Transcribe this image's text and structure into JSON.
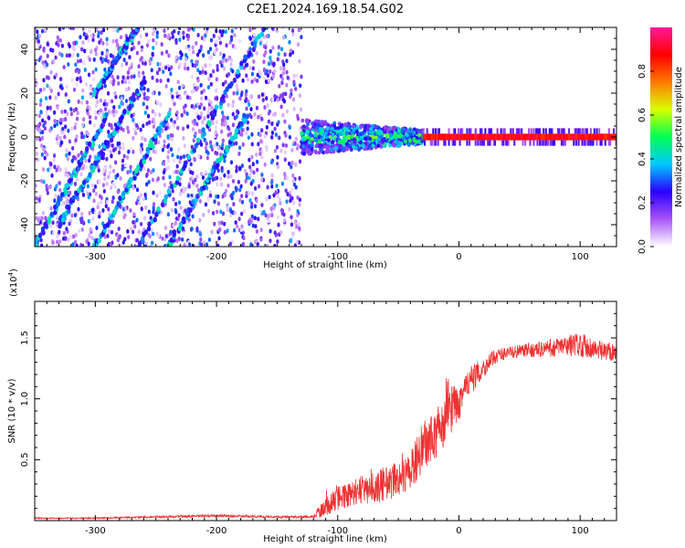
{
  "title": "C2E1.2024.169.18.54.G02",
  "chart_data": [
    {
      "type": "heatmap",
      "name": "spectrogram",
      "xlabel": "Height of straight line (km)",
      "ylabel": "Frequency (Hz)",
      "xlim": [
        -350,
        130
      ],
      "ylim": [
        -50,
        50
      ],
      "xticks": [
        "-300",
        "-200",
        "-100",
        "0",
        "100"
      ],
      "xtick_values": [
        -300,
        -200,
        -100,
        0,
        100
      ],
      "yticks": [
        "-40",
        "-20",
        "0",
        "20",
        "40"
      ],
      "ytick_values": [
        -40,
        -20,
        0,
        20,
        40
      ],
      "regions": [
        {
          "name": "noise",
          "x": [
            -350,
            -130
          ],
          "y": [
            -50,
            50
          ],
          "amplitude": 0.15
        },
        {
          "name": "transition",
          "x": [
            -130,
            -30
          ],
          "y": [
            -5,
            5
          ],
          "amplitude": 0.45
        },
        {
          "name": "carrier",
          "x": [
            -30,
            130
          ],
          "y": [
            -2,
            2
          ],
          "amplitude": 0.9
        }
      ],
      "stripes": [
        {
          "x0": -300,
          "y0": 20,
          "x1": -265,
          "y1": 50
        },
        {
          "x0": -265,
          "y0": -50,
          "x1": -160,
          "y1": 50
        },
        {
          "x0": -350,
          "y0": -50,
          "x1": -290,
          "y1": 10
        },
        {
          "x0": -330,
          "y0": -40,
          "x1": -260,
          "y1": 25
        },
        {
          "x0": -300,
          "y0": -50,
          "x1": -240,
          "y1": 10
        },
        {
          "x0": -240,
          "y0": -50,
          "x1": -175,
          "y1": 10
        }
      ],
      "colorbar": {
        "label": "Normalized spectral amplitude",
        "range": [
          0,
          1
        ],
        "ticks": [
          "0.0",
          "0.2",
          "0.4",
          "0.6",
          "0.8"
        ],
        "tick_values": [
          0,
          0.2,
          0.4,
          0.6,
          0.8
        ],
        "colors": [
          "#ffffff",
          "#a855f7",
          "#2a00ff",
          "#00c8ff",
          "#00ff55",
          "#d8ff00",
          "#ff7a00",
          "#ff0000",
          "#ff1a99"
        ]
      }
    },
    {
      "type": "line",
      "name": "snr",
      "xlabel": "Height of straight line (km)",
      "ylabel": "SNR (10 * v/v)",
      "scale_label": "(x10",
      "scale_exp": "4",
      "scale_close": ")",
      "xlim": [
        -350,
        130
      ],
      "ylim": [
        0,
        1.8
      ],
      "xticks": [
        "-300",
        "-200",
        "-100",
        "0",
        "100"
      ],
      "xtick_values": [
        -300,
        -200,
        -100,
        0,
        100
      ],
      "yticks": [
        "0.5",
        "1.0",
        "1.5"
      ],
      "ytick_values": [
        0.5,
        1.0,
        1.5
      ],
      "color": "#ee3333",
      "series": [
        {
          "name": "SNR",
          "x": [
            -350,
            -300,
            -250,
            -200,
            -150,
            -120,
            -115,
            -100,
            -80,
            -60,
            -40,
            -30,
            -20,
            -10,
            0,
            10,
            20,
            30,
            40,
            60,
            80,
            100,
            120,
            130
          ],
          "y": [
            0.02,
            0.02,
            0.03,
            0.04,
            0.03,
            0.03,
            0.08,
            0.18,
            0.25,
            0.3,
            0.4,
            0.6,
            0.7,
            0.82,
            1.0,
            1.15,
            1.25,
            1.35,
            1.38,
            1.4,
            1.42,
            1.45,
            1.38,
            1.4
          ],
          "noise": [
            0.005,
            0.005,
            0.008,
            0.01,
            0.01,
            0.01,
            0.06,
            0.1,
            0.12,
            0.14,
            0.16,
            0.2,
            0.22,
            0.2,
            0.18,
            0.12,
            0.08,
            0.06,
            0.05,
            0.06,
            0.08,
            0.1,
            0.08,
            0.08
          ]
        }
      ]
    }
  ]
}
